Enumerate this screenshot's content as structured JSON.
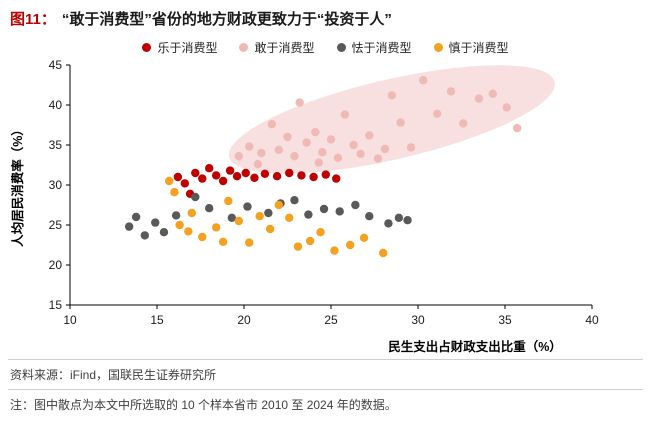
{
  "figure": {
    "label": "图11：",
    "title": "“敢于消费型”省份的地方财政更致力于“投资于人”"
  },
  "footer": {
    "source": "资料来源：iFind，国联民生证券研究所",
    "note": "注：图中散点为本文中所选取的 10 个样本省市 2010 至 2024 年的数据。"
  },
  "colors": {
    "title_label_red": "#C00000",
    "axis": "#000000",
    "divider": "#CFCFCF",
    "footer_text": "#404040",
    "ellipse_fill": "#F4D6D4"
  },
  "chart_data": {
    "type": "scatter",
    "title": "",
    "xlabel": "民生支出占财政支出比重（%）",
    "ylabel": "人均居民消费率（%）",
    "xlim": [
      10,
      40
    ],
    "ylim": [
      15,
      45
    ],
    "xticks": [
      10,
      15,
      20,
      25,
      30,
      35,
      40
    ],
    "yticks": [
      15,
      20,
      25,
      30,
      35,
      40,
      45
    ],
    "grid": false,
    "legend_position": "top",
    "marker_radius": 4.2,
    "series": [
      {
        "name": "乐于消费型",
        "color": "#C00000",
        "points": [
          [
            16.2,
            31.0
          ],
          [
            16.6,
            30.2
          ],
          [
            16.9,
            28.9
          ],
          [
            17.2,
            31.5
          ],
          [
            17.6,
            30.8
          ],
          [
            18.0,
            32.1
          ],
          [
            18.4,
            31.2
          ],
          [
            18.8,
            30.5
          ],
          [
            19.2,
            31.8
          ],
          [
            19.6,
            31.1
          ],
          [
            20.1,
            31.5
          ],
          [
            20.6,
            30.9
          ],
          [
            21.2,
            31.4
          ],
          [
            21.9,
            31.1
          ],
          [
            22.6,
            31.5
          ],
          [
            23.3,
            31.2
          ],
          [
            24.0,
            31.0
          ],
          [
            24.7,
            31.3
          ],
          [
            25.3,
            30.8
          ]
        ]
      },
      {
        "name": "敢于消费型",
        "color": "#EFB9B6",
        "points": [
          [
            19.7,
            33.6
          ],
          [
            20.3,
            34.8
          ],
          [
            20.8,
            32.6
          ],
          [
            21.0,
            34.0
          ],
          [
            21.6,
            37.6
          ],
          [
            22.0,
            34.4
          ],
          [
            22.5,
            36.0
          ],
          [
            22.9,
            33.6
          ],
          [
            23.2,
            40.3
          ],
          [
            23.6,
            35.3
          ],
          [
            24.1,
            36.6
          ],
          [
            24.3,
            32.8
          ],
          [
            24.5,
            34.1
          ],
          [
            25.0,
            35.7
          ],
          [
            25.4,
            33.4
          ],
          [
            25.8,
            38.8
          ],
          [
            26.3,
            35.0
          ],
          [
            26.7,
            33.9
          ],
          [
            27.2,
            36.2
          ],
          [
            27.7,
            33.3
          ],
          [
            28.1,
            34.5
          ],
          [
            28.5,
            41.2
          ],
          [
            29.0,
            37.8
          ],
          [
            29.6,
            34.7
          ],
          [
            30.3,
            43.1
          ],
          [
            31.1,
            38.9
          ],
          [
            31.9,
            41.7
          ],
          [
            32.6,
            37.7
          ],
          [
            33.5,
            40.8
          ],
          [
            34.3,
            41.4
          ],
          [
            35.1,
            39.7
          ],
          [
            35.7,
            37.1
          ]
        ]
      },
      {
        "name": "怯于消费型",
        "color": "#595959",
        "points": [
          [
            13.4,
            24.8
          ],
          [
            13.8,
            26.0
          ],
          [
            14.3,
            23.7
          ],
          [
            14.9,
            25.3
          ],
          [
            15.4,
            24.1
          ],
          [
            16.1,
            26.2
          ],
          [
            17.2,
            28.5
          ],
          [
            18.0,
            27.1
          ],
          [
            19.3,
            25.9
          ],
          [
            20.2,
            27.3
          ],
          [
            21.4,
            26.5
          ],
          [
            22.1,
            27.7
          ],
          [
            22.9,
            28.1
          ],
          [
            23.7,
            26.3
          ],
          [
            24.6,
            27.0
          ],
          [
            25.5,
            26.7
          ],
          [
            26.4,
            27.5
          ],
          [
            27.2,
            26.1
          ],
          [
            28.3,
            25.2
          ],
          [
            28.9,
            25.9
          ],
          [
            29.4,
            25.6
          ]
        ]
      },
      {
        "name": "慎于消费型",
        "color": "#F5A01E",
        "points": [
          [
            15.7,
            30.5
          ],
          [
            16.0,
            29.1
          ],
          [
            16.3,
            25.0
          ],
          [
            16.8,
            24.2
          ],
          [
            17.0,
            26.5
          ],
          [
            17.6,
            23.5
          ],
          [
            18.4,
            24.7
          ],
          [
            18.8,
            22.9
          ],
          [
            19.1,
            28.0
          ],
          [
            19.7,
            25.5
          ],
          [
            20.3,
            22.8
          ],
          [
            20.9,
            26.1
          ],
          [
            21.5,
            24.5
          ],
          [
            22.0,
            27.5
          ],
          [
            22.6,
            25.9
          ],
          [
            23.1,
            22.3
          ],
          [
            23.8,
            23.0
          ],
          [
            24.4,
            24.1
          ],
          [
            25.2,
            21.8
          ],
          [
            26.1,
            22.5
          ],
          [
            26.9,
            23.4
          ],
          [
            28.0,
            21.5
          ]
        ]
      }
    ],
    "annotations": [
      {
        "type": "ellipse",
        "cx": 28.5,
        "cy": 38.2,
        "rx": 9.6,
        "ry": 5.0,
        "rotation_deg": -13,
        "fill": "#F4D6D4",
        "opacity": 0.75
      }
    ]
  }
}
